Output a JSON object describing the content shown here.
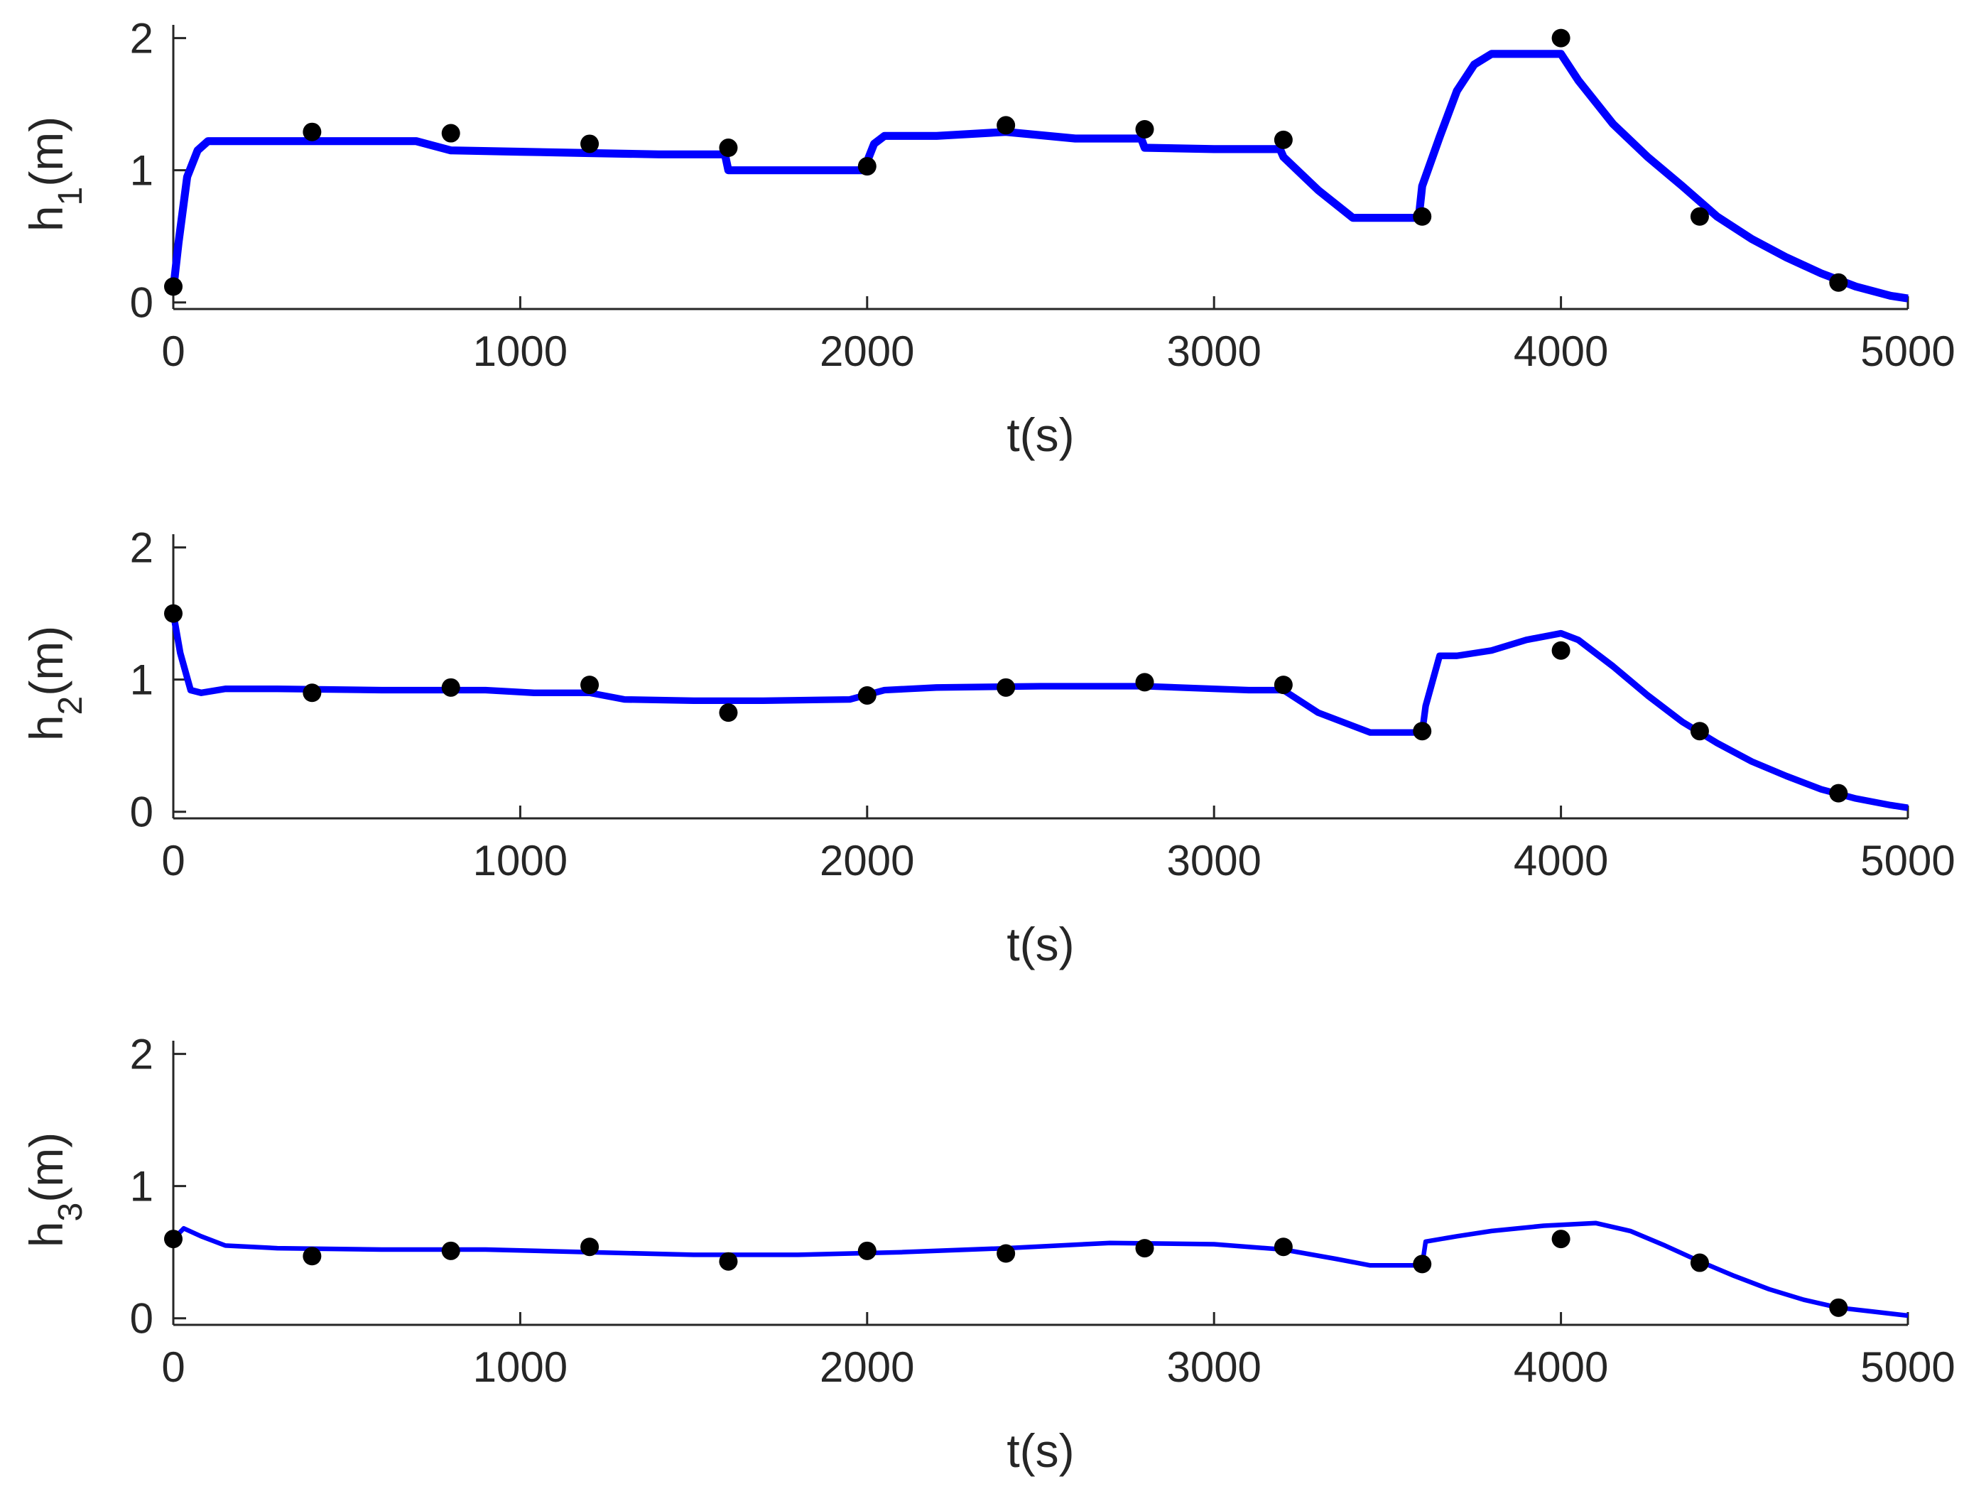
{
  "figure": {
    "background": "#ffffff",
    "axis_color": "#262626"
  },
  "chart_data": [
    {
      "type": "line",
      "xlabel": "t(s)",
      "ylabel": {
        "base": "h",
        "sub": "1",
        "unit": "(m)"
      },
      "xlim": [
        0,
        5000
      ],
      "ylim": [
        -0.05,
        2.1
      ],
      "xticks": [
        0,
        1000,
        2000,
        3000,
        4000,
        5000
      ],
      "yticks": [
        0,
        1,
        2
      ],
      "grid": false,
      "series": [
        {
          "kind": "line",
          "color": "#0000ff",
          "band": 0.06,
          "x": [
            0,
            15,
            40,
            70,
            100,
            200,
            400,
            700,
            800,
            1000,
            1200,
            1400,
            1590,
            1600,
            1800,
            1990,
            2020,
            2050,
            2200,
            2400,
            2600,
            2790,
            2800,
            3000,
            3190,
            3200,
            3300,
            3400,
            3450,
            3590,
            3600,
            3650,
            3700,
            3750,
            3800,
            3850,
            4000,
            4050,
            4150,
            4250,
            4350,
            4450,
            4550,
            4650,
            4750,
            4850,
            4950,
            5000
          ],
          "y": [
            0.1,
            0.45,
            0.95,
            1.15,
            1.22,
            1.22,
            1.22,
            1.22,
            1.15,
            1.14,
            1.13,
            1.12,
            1.12,
            1.0,
            1.0,
            1.0,
            1.2,
            1.26,
            1.26,
            1.29,
            1.24,
            1.24,
            1.17,
            1.16,
            1.16,
            1.1,
            0.85,
            0.64,
            0.64,
            0.64,
            0.88,
            1.25,
            1.6,
            1.8,
            1.88,
            1.88,
            1.88,
            1.68,
            1.35,
            1.1,
            0.88,
            0.65,
            0.48,
            0.34,
            0.22,
            0.12,
            0.05,
            0.03
          ]
        },
        {
          "kind": "markers",
          "color": "#000000",
          "x": [
            0,
            400,
            800,
            1200,
            1600,
            2000,
            2400,
            2800,
            3200,
            3600,
            4000,
            4400,
            4800
          ],
          "y": [
            0.12,
            1.29,
            1.28,
            1.2,
            1.17,
            1.03,
            1.34,
            1.31,
            1.23,
            0.65,
            2.0,
            0.65,
            0.15
          ]
        }
      ]
    },
    {
      "type": "line",
      "xlabel": "t(s)",
      "ylabel": {
        "base": "h",
        "sub": "2",
        "unit": "(m)"
      },
      "xlim": [
        0,
        5000
      ],
      "ylim": [
        -0.05,
        2.1
      ],
      "xticks": [
        0,
        1000,
        2000,
        3000,
        4000,
        5000
      ],
      "yticks": [
        0,
        1,
        2
      ],
      "grid": false,
      "series": [
        {
          "kind": "line",
          "color": "#0000ff",
          "band": 0.05,
          "x": [
            0,
            20,
            50,
            80,
            150,
            300,
            600,
            900,
            1040,
            1200,
            1300,
            1500,
            1700,
            1950,
            2050,
            2200,
            2500,
            2800,
            3100,
            3200,
            3300,
            3450,
            3600,
            3610,
            3650,
            3700,
            3800,
            3900,
            4000,
            4050,
            4150,
            4250,
            4350,
            4450,
            4550,
            4650,
            4750,
            4850,
            4950,
            5000
          ],
          "y": [
            1.5,
            1.2,
            0.92,
            0.9,
            0.93,
            0.93,
            0.92,
            0.92,
            0.9,
            0.9,
            0.85,
            0.84,
            0.84,
            0.85,
            0.92,
            0.94,
            0.95,
            0.95,
            0.92,
            0.92,
            0.75,
            0.6,
            0.6,
            0.8,
            1.18,
            1.18,
            1.22,
            1.3,
            1.35,
            1.3,
            1.1,
            0.88,
            0.68,
            0.52,
            0.38,
            0.27,
            0.17,
            0.1,
            0.05,
            0.03
          ]
        },
        {
          "kind": "markers",
          "color": "#000000",
          "x": [
            0,
            400,
            800,
            1200,
            1600,
            2000,
            2400,
            2800,
            3200,
            3600,
            4000,
            4400,
            4800
          ],
          "y": [
            1.5,
            0.9,
            0.94,
            0.96,
            0.75,
            0.88,
            0.94,
            0.98,
            0.96,
            0.61,
            1.22,
            0.61,
            0.14
          ]
        }
      ]
    },
    {
      "type": "line",
      "xlabel": "t(s)",
      "ylabel": {
        "base": "h",
        "sub": "3",
        "unit": "(m)"
      },
      "xlim": [
        0,
        5000
      ],
      "ylim": [
        -0.05,
        2.1
      ],
      "xticks": [
        0,
        1000,
        2000,
        3000,
        4000,
        5000
      ],
      "yticks": [
        0,
        1,
        2
      ],
      "grid": false,
      "series": [
        {
          "kind": "line",
          "color": "#0000ff",
          "band": 0.035,
          "x": [
            0,
            30,
            80,
            150,
            300,
            600,
            900,
            1200,
            1500,
            1800,
            2100,
            2400,
            2700,
            3000,
            3200,
            3350,
            3450,
            3600,
            3610,
            3700,
            3800,
            3950,
            4100,
            4200,
            4300,
            4400,
            4500,
            4600,
            4700,
            4800,
            4900,
            5000
          ],
          "y": [
            0.6,
            0.68,
            0.62,
            0.55,
            0.53,
            0.52,
            0.52,
            0.5,
            0.48,
            0.48,
            0.5,
            0.53,
            0.57,
            0.56,
            0.52,
            0.45,
            0.4,
            0.4,
            0.58,
            0.62,
            0.66,
            0.7,
            0.72,
            0.66,
            0.55,
            0.43,
            0.32,
            0.22,
            0.14,
            0.08,
            0.05,
            0.02
          ]
        },
        {
          "kind": "markers",
          "color": "#000000",
          "x": [
            0,
            400,
            800,
            1200,
            1600,
            2000,
            2400,
            2800,
            3200,
            3600,
            4000,
            4400,
            4800
          ],
          "y": [
            0.6,
            0.47,
            0.51,
            0.54,
            0.43,
            0.51,
            0.49,
            0.53,
            0.54,
            0.41,
            0.6,
            0.42,
            0.08
          ]
        }
      ]
    }
  ]
}
